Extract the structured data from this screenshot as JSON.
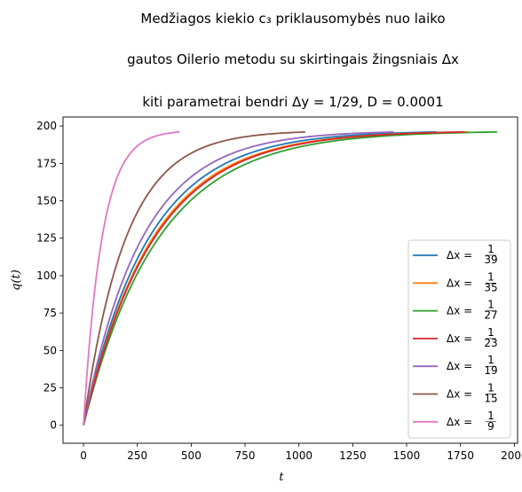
{
  "title": {
    "line1": "Medžiagos kiekio c₃ priklausomybės nuo laiko",
    "line2": "gautos Oilerio metodu su skirtingais žingsniais Δx",
    "line3": "kiti parametrai bendri Δy = 1/29, D = 0.0001"
  },
  "chart_data": {
    "type": "line",
    "xlabel": "t",
    "ylabel": "q(t)",
    "xlim": [
      -95,
      2015
    ],
    "ylim": [
      -12,
      206
    ],
    "xticks": [
      0,
      250,
      500,
      750,
      1000,
      1250,
      1500,
      1750,
      2000
    ],
    "yticks": [
      0,
      25,
      50,
      75,
      100,
      125,
      150,
      175,
      200
    ],
    "legend_position": "lower right",
    "grid": false,
    "series": [
      {
        "name": "Δx = 1/39",
        "color": "#1f77b4",
        "t_end": 1640,
        "y_end": 196,
        "tau": 300
      },
      {
        "name": "Δx = 1/35",
        "color": "#ff7f0e",
        "t_end": 1790,
        "y_end": 196,
        "tau": 318
      },
      {
        "name": "Δx = 1/27",
        "color": "#2ca02c",
        "t_end": 1920,
        "y_end": 196,
        "tau": 345
      },
      {
        "name": "Δx = 1/23",
        "color": "#d62728",
        "t_end": 1770,
        "y_end": 196,
        "tau": 325
      },
      {
        "name": "Δx = 1/19",
        "color": "#9467bd",
        "t_end": 1440,
        "y_end": 196,
        "tau": 270
      },
      {
        "name": "Δx = 1/15",
        "color": "#8c564b",
        "t_end": 1030,
        "y_end": 196,
        "tau": 195
      },
      {
        "name": "Δx = 1/9",
        "color": "#e377c2",
        "t_end": 445,
        "y_end": 196,
        "tau": 85
      }
    ],
    "legend_labels": [
      {
        "pre": "Δx = ",
        "num": "1",
        "den": "39"
      },
      {
        "pre": "Δx = ",
        "num": "1",
        "den": "35"
      },
      {
        "pre": "Δx = ",
        "num": "1",
        "den": "27"
      },
      {
        "pre": "Δx = ",
        "num": "1",
        "den": "23"
      },
      {
        "pre": "Δx = ",
        "num": "1",
        "den": "19"
      },
      {
        "pre": "Δx = ",
        "num": "1",
        "den": "15"
      },
      {
        "pre": "Δx = ",
        "num": "1",
        "den": "9"
      }
    ]
  }
}
